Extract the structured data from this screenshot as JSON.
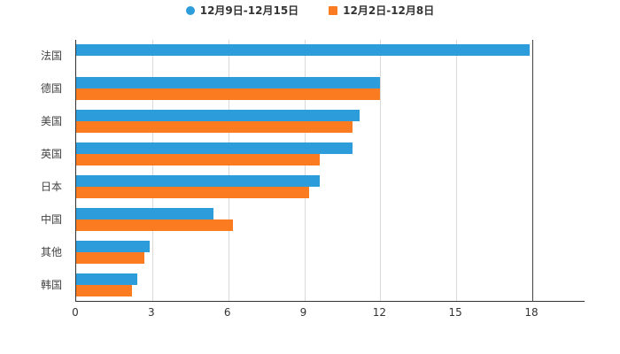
{
  "chart_data": {
    "type": "bar",
    "orientation": "horizontal",
    "title": "",
    "xlabel": "",
    "ylabel": "",
    "categories": [
      "法国",
      "德国",
      "美国",
      "英国",
      "日本",
      "中国",
      "其他",
      "韩国"
    ],
    "series": [
      {
        "name": "12月9日-12月15日",
        "color": "#2D9CDB",
        "marker": "circle",
        "values": [
          17.9,
          12.0,
          11.2,
          10.9,
          9.6,
          5.4,
          2.9,
          2.4
        ]
      },
      {
        "name": "12月2日-12月8日",
        "color": "#FB7B21",
        "marker": "square",
        "values": [
          0,
          12.0,
          10.9,
          9.6,
          9.2,
          6.2,
          2.7,
          2.2
        ]
      }
    ],
    "xlim": [
      0,
      18
    ],
    "xticks": [
      0,
      3,
      6,
      9,
      12,
      15,
      18
    ],
    "legend_position": "top",
    "grid": true,
    "colors": {
      "axis": "#333333",
      "gridline": "#d9d9d9",
      "label": "#444444",
      "background": "#ffffff"
    }
  }
}
